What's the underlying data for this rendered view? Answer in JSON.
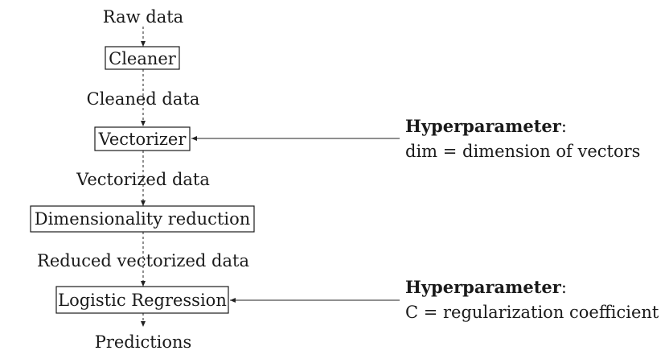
{
  "pipeline": {
    "input_label": "Raw data",
    "steps": [
      {
        "label": "Cleaner",
        "output_label": "Cleaned data"
      },
      {
        "label": "Vectorizer",
        "output_label": "Vectorized data"
      },
      {
        "label": "Dimensionality reduction",
        "output_label": "Reduced vectorized data"
      },
      {
        "label": "Logistic Regression",
        "output_label": "Predictions"
      }
    ]
  },
  "hyperparameters": [
    {
      "heading": "Hyperparameter",
      "separator": ":",
      "description": "dim = dimension of vectors",
      "target_step": "Vectorizer"
    },
    {
      "heading": "Hyperparameter",
      "separator": ":",
      "description": "C = regularization coefficient",
      "target_step": "Logistic Regression"
    }
  ],
  "colors": {
    "ink": "#1a1a1a",
    "background": "#ffffff"
  }
}
